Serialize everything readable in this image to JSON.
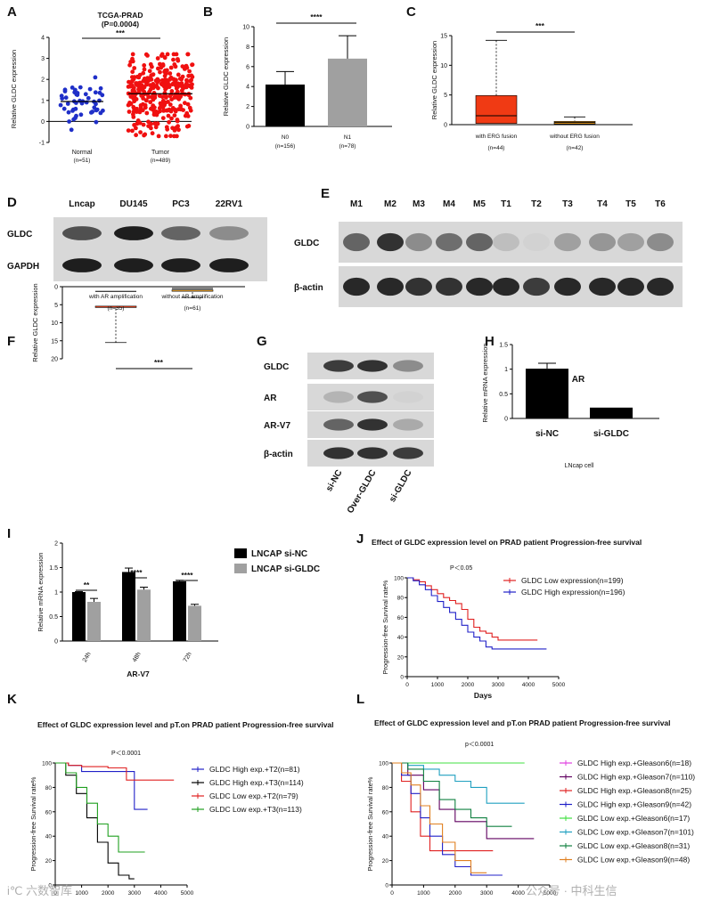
{
  "panel_labels": {
    "A": "A",
    "B": "B",
    "C": "C",
    "D": "D",
    "E": "E",
    "F": "F",
    "G": "G",
    "H": "H",
    "I": "I",
    "J": "J",
    "K": "K",
    "L": "L"
  },
  "watermarks": {
    "left": "i℃ 六数智库",
    "right": "公众号 · 中科生信"
  },
  "chart_data": [
    {
      "panel": "A",
      "type": "scatter",
      "title": "TCGA-PRAD",
      "subtitle": "(P=0.0004)",
      "sig": "***",
      "ylabel": "Relative GLDC expression",
      "ylim": [
        -1,
        4
      ],
      "yticks": [
        -1,
        0,
        1,
        2,
        3,
        4
      ],
      "groups": [
        {
          "name": "Normal",
          "n": "(n=51)",
          "color": "#1f2fc8",
          "mean": 0.95,
          "sd_low": 0.55,
          "sd_high": 1.35,
          "range": [
            -0.4,
            3.1
          ],
          "count": 51
        },
        {
          "name": "Tumor",
          "n": "(n=489)",
          "color": "#f01010",
          "mean": 1.32,
          "sd_low": 0.55,
          "sd_high": 2.1,
          "range": [
            -0.7,
            3.2
          ],
          "count": 489
        }
      ]
    },
    {
      "panel": "B",
      "type": "bar",
      "ylabel": "Relative GLDC expression",
      "ylim": [
        0,
        10
      ],
      "yticks": [
        0,
        2,
        4,
        6,
        8,
        10
      ],
      "sig": "****",
      "categories": [
        "N0",
        "N1"
      ],
      "ns": [
        "(n=156)",
        "(n=78)"
      ],
      "values": [
        4.2,
        6.8
      ],
      "errors": [
        1.3,
        2.3
      ],
      "colors": [
        "#000000",
        "#a0a0a0"
      ]
    },
    {
      "panel": "C",
      "type": "box",
      "ylabel": "Relative GLDC expression",
      "ylim": [
        0,
        15
      ],
      "yticks": [
        0,
        5,
        10,
        15
      ],
      "sig": "***",
      "categories": [
        "with ERG fusion",
        "without ERG fusion"
      ],
      "ns": [
        "(n=44)",
        "(n=42)"
      ],
      "boxes": [
        {
          "min": 0,
          "q1": 0.2,
          "median": 1.5,
          "q3": 4.9,
          "max": 14.2,
          "color": "#f03a14"
        },
        {
          "min": 0,
          "q1": 0.1,
          "median": 0.35,
          "q3": 0.55,
          "max": 1.3,
          "color": "#f0a020"
        }
      ]
    },
    {
      "panel": "D",
      "type": "blot",
      "lanes": [
        "Lncap",
        "DU145",
        "PC3",
        "22RV1"
      ],
      "rows": [
        {
          "label": "GLDC",
          "intensities": [
            0.7,
            0.95,
            0.6,
            0.4
          ]
        },
        {
          "label": "GAPDH",
          "intensities": [
            0.95,
            0.95,
            0.95,
            0.95
          ]
        }
      ]
    },
    {
      "panel": "E",
      "type": "blot",
      "lanes": [
        "M1",
        "M2",
        "M3",
        "M4",
        "M5",
        "T1",
        "T2",
        "T3",
        "T4",
        "T5",
        "T6"
      ],
      "rows": [
        {
          "label": "GLDC",
          "intensities": [
            0.6,
            0.85,
            0.4,
            0.55,
            0.6,
            0.15,
            0.05,
            0.3,
            0.35,
            0.3,
            0.4
          ]
        },
        {
          "label": "β-actin",
          "intensities": [
            0.9,
            0.9,
            0.85,
            0.85,
            0.9,
            0.9,
            0.8,
            0.9,
            0.9,
            0.9,
            0.9
          ]
        }
      ]
    },
    {
      "panel": "F",
      "type": "box",
      "ylabel": "Relative GLDC expression",
      "ylim": [
        0,
        20
      ],
      "yticks": [
        0,
        5,
        10,
        15,
        20
      ],
      "sig": "***",
      "categories": [
        "with AR amplification",
        "without AR amplification"
      ],
      "ns": [
        "(n=35)",
        "(n=61)"
      ],
      "boxes": [
        {
          "min": 0,
          "q1": 0.3,
          "median": 1.3,
          "q3": 5.4,
          "max": 15.5,
          "color": "#f03a14"
        },
        {
          "min": 0,
          "q1": 0.2,
          "median": 0.5,
          "q3": 0.9,
          "max": 3.0,
          "color": "#f0a020"
        }
      ]
    },
    {
      "panel": "G",
      "type": "blot",
      "lanes": [
        "si-NC",
        "Over-GLDC",
        "si-GLDC"
      ],
      "rows": [
        {
          "label": "GLDC",
          "intensities": [
            0.8,
            0.85,
            0.4
          ]
        },
        {
          "label": "AR",
          "intensities": [
            0.2,
            0.7,
            0.05
          ]
        },
        {
          "label": "AR-V7",
          "intensities": [
            0.6,
            0.85,
            0.25
          ]
        },
        {
          "label": "β-actin",
          "intensities": [
            0.85,
            0.85,
            0.8
          ]
        }
      ]
    },
    {
      "panel": "H",
      "type": "bar",
      "title": "AR",
      "ylabel": "Relative mRNA expression",
      "xlabel": "LNcap cell",
      "ylim": [
        0,
        1.5
      ],
      "yticks": [
        0.0,
        0.5,
        1.0,
        1.5
      ],
      "categories": [
        "si-NC",
        "si-GLDC"
      ],
      "values": [
        1.01,
        0.22
      ],
      "errors": [
        0.11,
        0
      ],
      "colors": [
        "#000000",
        "#000000"
      ]
    },
    {
      "panel": "I",
      "type": "bar",
      "xlabel": "AR-V7",
      "ylabel": "Relative mRNA expression",
      "ylim": [
        0,
        2.0
      ],
      "yticks": [
        0.0,
        0.5,
        1.0,
        1.5,
        2.0
      ],
      "categories": [
        "24h",
        "48h",
        "72h"
      ],
      "series": [
        {
          "name": "LNCAP si-NC",
          "color": "#000000",
          "values": [
            1.0,
            1.41,
            1.22
          ],
          "errors": [
            0.01,
            0.08,
            0.02
          ]
        },
        {
          "name": "LNCAP si-GLDC",
          "color": "#a0a0a0",
          "values": [
            0.8,
            1.05,
            0.72
          ],
          "errors": [
            0.07,
            0.05,
            0.03
          ]
        }
      ],
      "sigs": [
        "**",
        "****",
        "****"
      ]
    },
    {
      "panel": "J",
      "type": "line",
      "title": "Effect of GLDC expression level on PRAD patient Progression-free survival",
      "pval": "P＜0.05",
      "xlabel": "Days",
      "ylabel": "Progression-free Survival rate%",
      "xlim": [
        0,
        5000
      ],
      "ylim": [
        0,
        100
      ],
      "xticks": [
        0,
        1000,
        2000,
        3000,
        4000,
        5000
      ],
      "yticks": [
        0,
        20,
        40,
        60,
        80,
        100
      ],
      "series": [
        {
          "name": "GLDC Low expression(n=199)",
          "color": "#e02020",
          "x": [
            0,
            200,
            400,
            600,
            800,
            1000,
            1200,
            1400,
            1600,
            1800,
            2000,
            2200,
            2400,
            2600,
            2800,
            3000,
            3500,
            4000,
            4300
          ],
          "y": [
            100,
            98,
            96,
            92,
            88,
            84,
            80,
            77,
            74,
            68,
            58,
            50,
            46,
            44,
            40,
            37,
            37,
            37,
            37
          ]
        },
        {
          "name": "GLDC High expression(n=196)",
          "color": "#2020c8",
          "x": [
            0,
            200,
            400,
            600,
            800,
            1000,
            1200,
            1400,
            1600,
            1800,
            2000,
            2200,
            2400,
            2600,
            2800,
            3000,
            3500,
            4000,
            4600
          ],
          "y": [
            100,
            97,
            93,
            88,
            82,
            76,
            70,
            65,
            58,
            52,
            45,
            40,
            36,
            30,
            28,
            28,
            28,
            28,
            28
          ]
        }
      ]
    },
    {
      "panel": "K",
      "type": "line",
      "title": "Effect of GLDC expression level and pT.on PRAD patient Progression-free survival",
      "pval": "P＜0.0001",
      "xlabel": "Days",
      "ylabel": "Progression-free Survival rate%",
      "xlim": [
        0,
        5000
      ],
      "ylim": [
        0,
        100
      ],
      "xticks": [
        0,
        1000,
        2000,
        3000,
        4000,
        5000
      ],
      "yticks": [
        0,
        20,
        40,
        60,
        80,
        100
      ],
      "series": [
        {
          "name": "GLDC High exp.+T2(n=81)",
          "color": "#2020c8",
          "x": [
            0,
            500,
            1000,
            2000,
            2800,
            3000,
            3200,
            3500
          ],
          "y": [
            100,
            98,
            93,
            93,
            93,
            62,
            62,
            62
          ]
        },
        {
          "name": "GLDC High exp.+T3(n=114)",
          "color": "#000000",
          "x": [
            0,
            400,
            800,
            1200,
            1600,
            2000,
            2400,
            2800,
            3000
          ],
          "y": [
            100,
            90,
            75,
            55,
            35,
            18,
            8,
            5,
            5
          ]
        },
        {
          "name": "GLDC Low exp.+T2(n=79)",
          "color": "#e02020",
          "x": [
            0,
            500,
            1000,
            2000,
            2500,
            2700,
            4500
          ],
          "y": [
            100,
            98,
            97,
            96,
            96,
            86,
            86
          ]
        },
        {
          "name": "GLDC Low exp.+T3(n=113)",
          "color": "#20a020",
          "x": [
            0,
            400,
            800,
            1200,
            1600,
            2000,
            2400,
            2800,
            3400
          ],
          "y": [
            100,
            92,
            80,
            67,
            50,
            40,
            27,
            27,
            27
          ]
        }
      ]
    },
    {
      "panel": "L",
      "type": "line",
      "title": "Effect of GLDC expression level and pT.on PRAD patient Progression-free survival",
      "pval": "p＜0.0001",
      "xlabel": "Days",
      "ylabel": "Progression-free Survival rate%",
      "xlim": [
        0,
        5000
      ],
      "ylim": [
        0,
        100
      ],
      "xticks": [
        0,
        1000,
        2000,
        3000,
        4000,
        5000
      ],
      "yticks": [
        0,
        20,
        40,
        60,
        80,
        100
      ],
      "series": [
        {
          "name": "GLDC High exp.+Gleason6(n=18)",
          "color": "#e040e0",
          "x": [
            0,
            1000,
            2000,
            3500
          ],
          "y": [
            100,
            100,
            100,
            100
          ]
        },
        {
          "name": "GLDC High exp.+Gleason7(n=110)",
          "color": "#600060",
          "x": [
            0,
            500,
            1000,
            1500,
            2000,
            2500,
            3000,
            4500
          ],
          "y": [
            100,
            90,
            78,
            62,
            52,
            52,
            38,
            38
          ]
        },
        {
          "name": "GLDC High exp.+Gleason8(n=25)",
          "color": "#e02020",
          "x": [
            0,
            300,
            600,
            900,
            1200,
            1600,
            2000,
            2500,
            3200
          ],
          "y": [
            100,
            85,
            60,
            40,
            28,
            28,
            28,
            28,
            28
          ]
        },
        {
          "name": "GLDC High exp.+Gleason9(n=42)",
          "color": "#2020c8",
          "x": [
            0,
            300,
            600,
            900,
            1200,
            1600,
            2000,
            2500,
            3000,
            3500
          ],
          "y": [
            100,
            90,
            75,
            55,
            40,
            25,
            15,
            8,
            8,
            8
          ]
        },
        {
          "name": "GLDC Low exp.+Gleason6(n=17)",
          "color": "#40e040",
          "x": [
            0,
            1000,
            2000,
            3000,
            4200
          ],
          "y": [
            100,
            100,
            100,
            100,
            100
          ]
        },
        {
          "name": "GLDC Low exp.+Gleason7(n=101)",
          "color": "#20a0c0",
          "x": [
            0,
            500,
            1000,
            1500,
            2000,
            2500,
            3000,
            3500,
            4200
          ],
          "y": [
            100,
            98,
            95,
            90,
            85,
            80,
            67,
            67,
            67
          ]
        },
        {
          "name": "GLDC Low exp.+Gleason8(n=31)",
          "color": "#108040",
          "x": [
            0,
            500,
            1000,
            1500,
            2000,
            2500,
            3000,
            3800
          ],
          "y": [
            100,
            95,
            85,
            70,
            62,
            55,
            48,
            48
          ]
        },
        {
          "name": "GLDC Low exp.+Gleason9(n=48)",
          "color": "#e08020",
          "x": [
            0,
            300,
            600,
            900,
            1200,
            1600,
            2000,
            2500,
            3000
          ],
          "y": [
            100,
            92,
            82,
            65,
            50,
            35,
            20,
            10,
            10
          ]
        }
      ]
    }
  ]
}
